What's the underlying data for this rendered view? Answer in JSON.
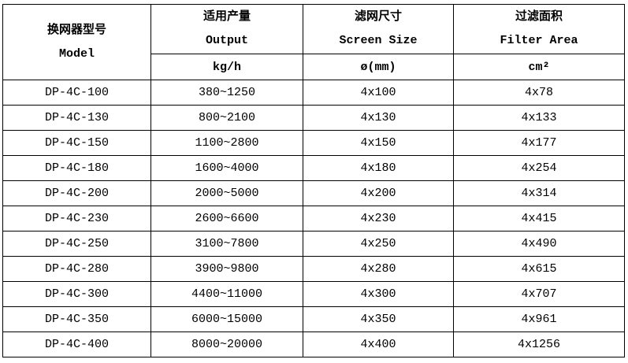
{
  "headers": {
    "model": {
      "zh": "换网器型号",
      "en": "Model"
    },
    "output": {
      "zh": "适用产量",
      "en": "Output",
      "unit": "kg/h"
    },
    "screen_size": {
      "zh": "滤网尺寸",
      "en": "Screen Size",
      "unit": "ø(mm)"
    },
    "filter_area": {
      "zh": "过滤面积",
      "en": "Filter Area",
      "unit": "cm²"
    }
  },
  "rows": [
    {
      "model": "DP-4C-100",
      "output": "380~1250",
      "screen": "4x100",
      "area": "4x78"
    },
    {
      "model": "DP-4C-130",
      "output": "800~2100",
      "screen": "4x130",
      "area": "4x133"
    },
    {
      "model": "DP-4C-150",
      "output": "1100~2800",
      "screen": "4x150",
      "area": "4x177"
    },
    {
      "model": "DP-4C-180",
      "output": "1600~4000",
      "screen": "4x180",
      "area": "4x254"
    },
    {
      "model": "DP-4C-200",
      "output": "2000~5000",
      "screen": "4x200",
      "area": "4x314"
    },
    {
      "model": "DP-4C-230",
      "output": "2600~6600",
      "screen": "4x230",
      "area": "4x415"
    },
    {
      "model": "DP-4C-250",
      "output": "3100~7800",
      "screen": "4x250",
      "area": "4x490"
    },
    {
      "model": "DP-4C-280",
      "output": "3900~9800",
      "screen": "4x280",
      "area": "4x615"
    },
    {
      "model": "DP-4C-300",
      "output": "4400~11000",
      "screen": "4x300",
      "area": "4x707"
    },
    {
      "model": "DP-4C-350",
      "output": "6000~15000",
      "screen": "4x350",
      "area": "4x961"
    },
    {
      "model": "DP-4C-400",
      "output": "8000~20000",
      "screen": "4x400",
      "area": "4x1256"
    }
  ]
}
